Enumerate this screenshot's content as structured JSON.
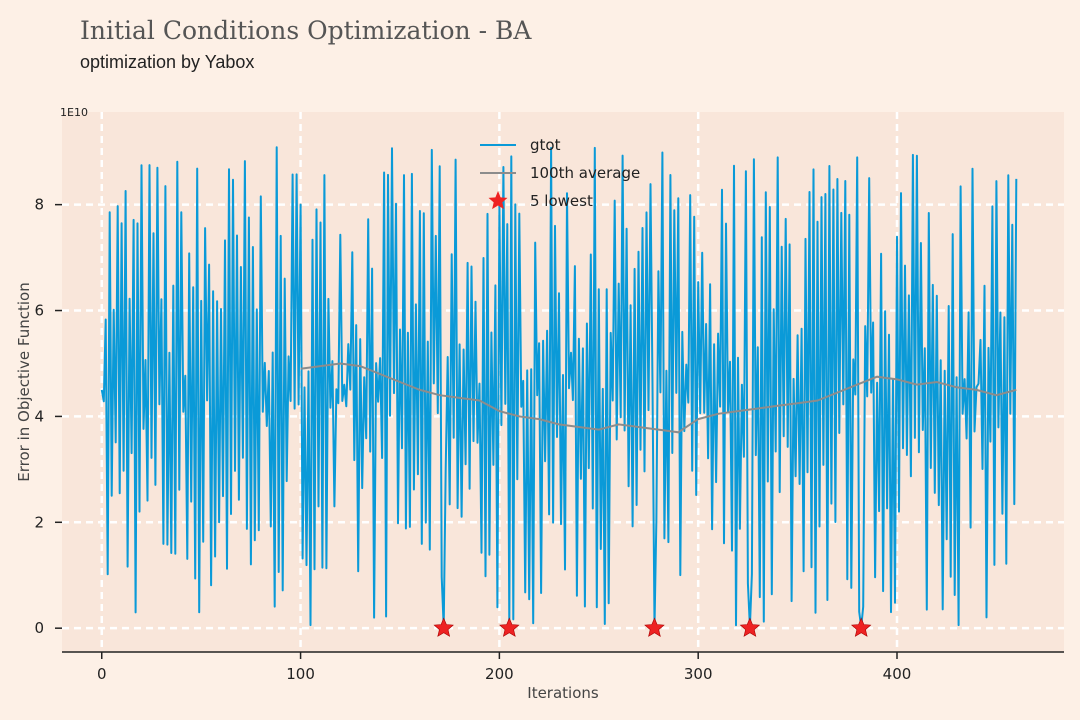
{
  "title": "Initial Conditions Optimization - BA",
  "subtitle": "optimization by Yabox",
  "colors": {
    "background": "#fdf0e6",
    "plot_bg": "#f9e6da",
    "series": "#0a9ad8",
    "average": "#8c8c8c",
    "lowest": "#ee2222",
    "grid": "#ffffff"
  },
  "chart_data": {
    "type": "line",
    "title": "Initial Conditions Optimization - BA",
    "subtitle": "optimization by Yabox",
    "xlabel": "Iterations",
    "ylabel": "Error in Objective Function",
    "y_multiplier_label": "1E10",
    "xlim": [
      -20,
      484
    ],
    "ylim": [
      -0.45,
      9.75
    ],
    "xticks": [
      0,
      100,
      200,
      300,
      400
    ],
    "yticks": [
      0,
      2,
      4,
      6,
      8
    ],
    "grid": true,
    "legend_position": "top-center",
    "series": [
      {
        "name": "gtot",
        "style": "line",
        "x_range": [
          0,
          460
        ],
        "note_values": "oscillating between ~0 and ~9.2 (x1E10)"
      },
      {
        "name": "100th average",
        "style": "line",
        "x": [
          100,
          110,
          120,
          130,
          140,
          150,
          160,
          170,
          180,
          190,
          200,
          210,
          220,
          230,
          240,
          250,
          260,
          270,
          280,
          290,
          300,
          310,
          320,
          330,
          340,
          350,
          360,
          370,
          380,
          390,
          400,
          410,
          420,
          430,
          440,
          450,
          460
        ],
        "y": [
          4.9,
          4.95,
          5.0,
          4.95,
          4.8,
          4.65,
          4.5,
          4.4,
          4.35,
          4.3,
          4.1,
          4.0,
          3.95,
          3.85,
          3.8,
          3.75,
          3.85,
          3.8,
          3.75,
          3.7,
          3.95,
          4.05,
          4.1,
          4.15,
          4.2,
          4.25,
          4.3,
          4.45,
          4.6,
          4.75,
          4.7,
          4.6,
          4.65,
          4.55,
          4.5,
          4.4,
          4.5
        ]
      },
      {
        "name": "5 lowest",
        "style": "star",
        "x": [
          172,
          205,
          278,
          326,
          382
        ],
        "y": [
          0,
          0,
          0,
          0,
          0
        ]
      }
    ]
  }
}
